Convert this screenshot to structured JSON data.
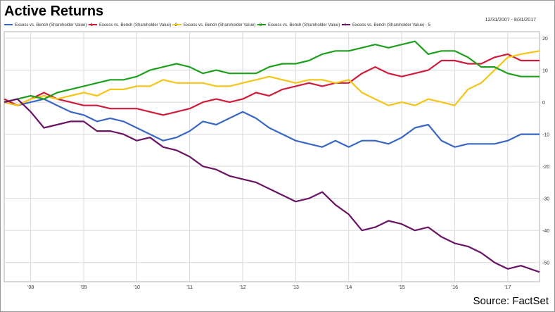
{
  "chart_data": {
    "type": "line",
    "title": "Active Returns",
    "date_range": "12/31/2007 - 8/31/2017",
    "source": "Source: FactSet",
    "x_ticks": [
      "'08",
      "'09",
      "'10",
      "'11",
      "'12",
      "'13",
      "'14",
      "'15",
      "'16",
      "'17"
    ],
    "x_tick_years": [
      2008,
      2009,
      2010,
      2011,
      2012,
      2013,
      2014,
      2015,
      2016,
      2017
    ],
    "x_range": [
      2007.5,
      2017.6
    ],
    "y_ticks": [
      20,
      10,
      0,
      -10,
      -20,
      -30,
      -40,
      -50
    ],
    "ylim": [
      -56,
      22
    ],
    "grid": true,
    "legend_position": "top",
    "series": [
      {
        "name": "Excess vs. Bench (Shareholder Value) - 1",
        "color": "#3a66c4",
        "points": [
          [
            2007.5,
            0
          ],
          [
            2007.75,
            -1
          ],
          [
            2008,
            0
          ],
          [
            2008.25,
            1
          ],
          [
            2008.5,
            -1
          ],
          [
            2008.75,
            -3
          ],
          [
            2009,
            -4
          ],
          [
            2009.25,
            -6
          ],
          [
            2009.5,
            -5
          ],
          [
            2009.75,
            -6
          ],
          [
            2010,
            -8
          ],
          [
            2010.25,
            -10
          ],
          [
            2010.5,
            -12
          ],
          [
            2010.75,
            -11
          ],
          [
            2011,
            -9
          ],
          [
            2011.25,
            -6
          ],
          [
            2011.5,
            -7
          ],
          [
            2011.75,
            -5
          ],
          [
            2012,
            -3
          ],
          [
            2012.25,
            -5
          ],
          [
            2012.5,
            -8
          ],
          [
            2012.75,
            -10
          ],
          [
            2013,
            -12
          ],
          [
            2013.25,
            -13
          ],
          [
            2013.5,
            -14
          ],
          [
            2013.75,
            -12
          ],
          [
            2014,
            -14
          ],
          [
            2014.25,
            -12
          ],
          [
            2014.5,
            -12
          ],
          [
            2014.75,
            -13
          ],
          [
            2015,
            -11
          ],
          [
            2015.25,
            -8
          ],
          [
            2015.5,
            -7
          ],
          [
            2015.75,
            -12
          ],
          [
            2016,
            -14
          ],
          [
            2016.25,
            -13
          ],
          [
            2016.5,
            -13
          ],
          [
            2016.75,
            -13
          ],
          [
            2017,
            -12
          ],
          [
            2017.25,
            -10
          ],
          [
            2017.6,
            -10
          ]
        ]
      },
      {
        "name": "Excess vs. Bench (Shareholder Value) - 2",
        "color": "#d01c3a",
        "points": [
          [
            2007.5,
            1
          ],
          [
            2007.75,
            -1
          ],
          [
            2008,
            1
          ],
          [
            2008.25,
            3
          ],
          [
            2008.5,
            1
          ],
          [
            2008.75,
            0
          ],
          [
            2009,
            -1
          ],
          [
            2009.25,
            -1
          ],
          [
            2009.5,
            -2
          ],
          [
            2009.75,
            -2
          ],
          [
            2010,
            -2
          ],
          [
            2010.25,
            -3
          ],
          [
            2010.5,
            -4
          ],
          [
            2010.75,
            -3
          ],
          [
            2011,
            -2
          ],
          [
            2011.25,
            0
          ],
          [
            2011.5,
            1
          ],
          [
            2011.75,
            0
          ],
          [
            2012,
            1
          ],
          [
            2012.25,
            3
          ],
          [
            2012.5,
            2
          ],
          [
            2012.75,
            4
          ],
          [
            2013,
            5
          ],
          [
            2013.25,
            6
          ],
          [
            2013.5,
            5
          ],
          [
            2013.75,
            6
          ],
          [
            2014,
            6
          ],
          [
            2014.25,
            9
          ],
          [
            2014.5,
            11
          ],
          [
            2014.75,
            9
          ],
          [
            2015,
            8
          ],
          [
            2015.25,
            9
          ],
          [
            2015.5,
            10
          ],
          [
            2015.75,
            13
          ],
          [
            2016,
            13
          ],
          [
            2016.25,
            12
          ],
          [
            2016.5,
            12
          ],
          [
            2016.75,
            14
          ],
          [
            2017,
            15
          ],
          [
            2017.25,
            13
          ],
          [
            2017.6,
            13
          ]
        ]
      },
      {
        "name": "Excess vs. Bench (Shareholder Value) - 3",
        "color": "#f5c518",
        "points": [
          [
            2007.5,
            0
          ],
          [
            2007.75,
            -1
          ],
          [
            2008,
            1
          ],
          [
            2008.25,
            2
          ],
          [
            2008.5,
            1
          ],
          [
            2008.75,
            2
          ],
          [
            2009,
            3
          ],
          [
            2009.25,
            2
          ],
          [
            2009.5,
            4
          ],
          [
            2009.75,
            4
          ],
          [
            2010,
            5
          ],
          [
            2010.25,
            5
          ],
          [
            2010.5,
            7
          ],
          [
            2010.75,
            6
          ],
          [
            2011,
            6
          ],
          [
            2011.25,
            6
          ],
          [
            2011.5,
            5
          ],
          [
            2011.75,
            5
          ],
          [
            2012,
            6
          ],
          [
            2012.25,
            7
          ],
          [
            2012.5,
            8
          ],
          [
            2012.75,
            7
          ],
          [
            2013,
            6
          ],
          [
            2013.25,
            7
          ],
          [
            2013.5,
            7
          ],
          [
            2013.75,
            6
          ],
          [
            2014,
            7
          ],
          [
            2014.25,
            3
          ],
          [
            2014.5,
            1
          ],
          [
            2014.75,
            -1
          ],
          [
            2015,
            0
          ],
          [
            2015.25,
            -1
          ],
          [
            2015.5,
            1
          ],
          [
            2015.75,
            0
          ],
          [
            2016,
            -1
          ],
          [
            2016.25,
            4
          ],
          [
            2016.5,
            6
          ],
          [
            2016.75,
            10
          ],
          [
            2017,
            14
          ],
          [
            2017.25,
            15
          ],
          [
            2017.6,
            16
          ]
        ]
      },
      {
        "name": "Excess vs. Bench (Shareholder Value) - 4",
        "color": "#1ea01e",
        "points": [
          [
            2007.5,
            0
          ],
          [
            2007.75,
            1
          ],
          [
            2008,
            2
          ],
          [
            2008.25,
            1
          ],
          [
            2008.5,
            3
          ],
          [
            2008.75,
            4
          ],
          [
            2009,
            5
          ],
          [
            2009.25,
            6
          ],
          [
            2009.5,
            7
          ],
          [
            2009.75,
            7
          ],
          [
            2010,
            8
          ],
          [
            2010.25,
            10
          ],
          [
            2010.5,
            11
          ],
          [
            2010.75,
            12
          ],
          [
            2011,
            11
          ],
          [
            2011.25,
            9
          ],
          [
            2011.5,
            10
          ],
          [
            2011.75,
            9
          ],
          [
            2012,
            9
          ],
          [
            2012.25,
            9
          ],
          [
            2012.5,
            11
          ],
          [
            2012.75,
            12
          ],
          [
            2013,
            12
          ],
          [
            2013.25,
            13
          ],
          [
            2013.5,
            15
          ],
          [
            2013.75,
            16
          ],
          [
            2014,
            16
          ],
          [
            2014.25,
            17
          ],
          [
            2014.5,
            18
          ],
          [
            2014.75,
            17
          ],
          [
            2015,
            18
          ],
          [
            2015.25,
            19
          ],
          [
            2015.5,
            15
          ],
          [
            2015.75,
            16
          ],
          [
            2016,
            16
          ],
          [
            2016.25,
            14
          ],
          [
            2016.5,
            11
          ],
          [
            2016.75,
            11
          ],
          [
            2017,
            9
          ],
          [
            2017.25,
            8
          ],
          [
            2017.6,
            8
          ]
        ]
      },
      {
        "name": "Excess vs. Bench (Shareholder Value) - 5",
        "color": "#6a1466",
        "points": [
          [
            2007.5,
            0
          ],
          [
            2007.75,
            1
          ],
          [
            2008,
            -3
          ],
          [
            2008.25,
            -8
          ],
          [
            2008.5,
            -7
          ],
          [
            2008.75,
            -6
          ],
          [
            2009,
            -6
          ],
          [
            2009.25,
            -9
          ],
          [
            2009.5,
            -9
          ],
          [
            2009.75,
            -10
          ],
          [
            2010,
            -12
          ],
          [
            2010.25,
            -11
          ],
          [
            2010.5,
            -14
          ],
          [
            2010.75,
            -15
          ],
          [
            2011,
            -17
          ],
          [
            2011.25,
            -20
          ],
          [
            2011.5,
            -21
          ],
          [
            2011.75,
            -23
          ],
          [
            2012,
            -24
          ],
          [
            2012.25,
            -25
          ],
          [
            2012.5,
            -27
          ],
          [
            2012.75,
            -29
          ],
          [
            2013,
            -31
          ],
          [
            2013.25,
            -30
          ],
          [
            2013.5,
            -28
          ],
          [
            2013.75,
            -32
          ],
          [
            2014,
            -35
          ],
          [
            2014.25,
            -40
          ],
          [
            2014.5,
            -39
          ],
          [
            2014.75,
            -37
          ],
          [
            2015,
            -38
          ],
          [
            2015.25,
            -40
          ],
          [
            2015.5,
            -39
          ],
          [
            2015.75,
            -42
          ],
          [
            2016,
            -44
          ],
          [
            2016.25,
            -45
          ],
          [
            2016.5,
            -47
          ],
          [
            2016.75,
            -50
          ],
          [
            2017,
            -52
          ],
          [
            2017.25,
            -51
          ],
          [
            2017.6,
            -53
          ]
        ]
      }
    ]
  }
}
